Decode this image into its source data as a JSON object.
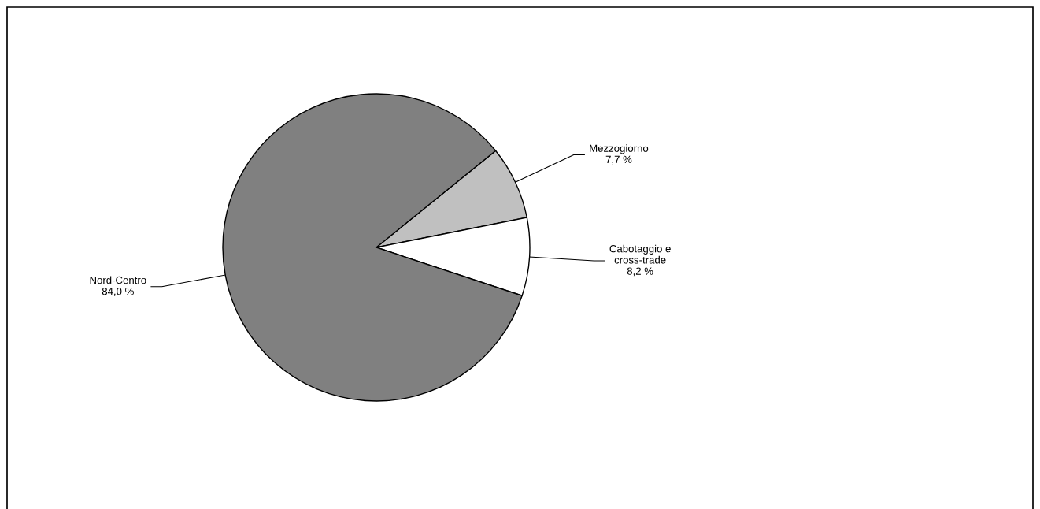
{
  "chart_data": {
    "type": "pie",
    "categories": [
      "Mezzogiorno",
      "Cabotaggio e\ncross-trade",
      "Nord-Centro"
    ],
    "values": [
      7.7,
      8.2,
      84.0
    ],
    "colors": [
      "#c0c0c0",
      "#ffffff",
      "#808080"
    ],
    "value_labels": [
      "7,7 %",
      "8,2 %",
      "84,0 %"
    ],
    "legend": false
  }
}
